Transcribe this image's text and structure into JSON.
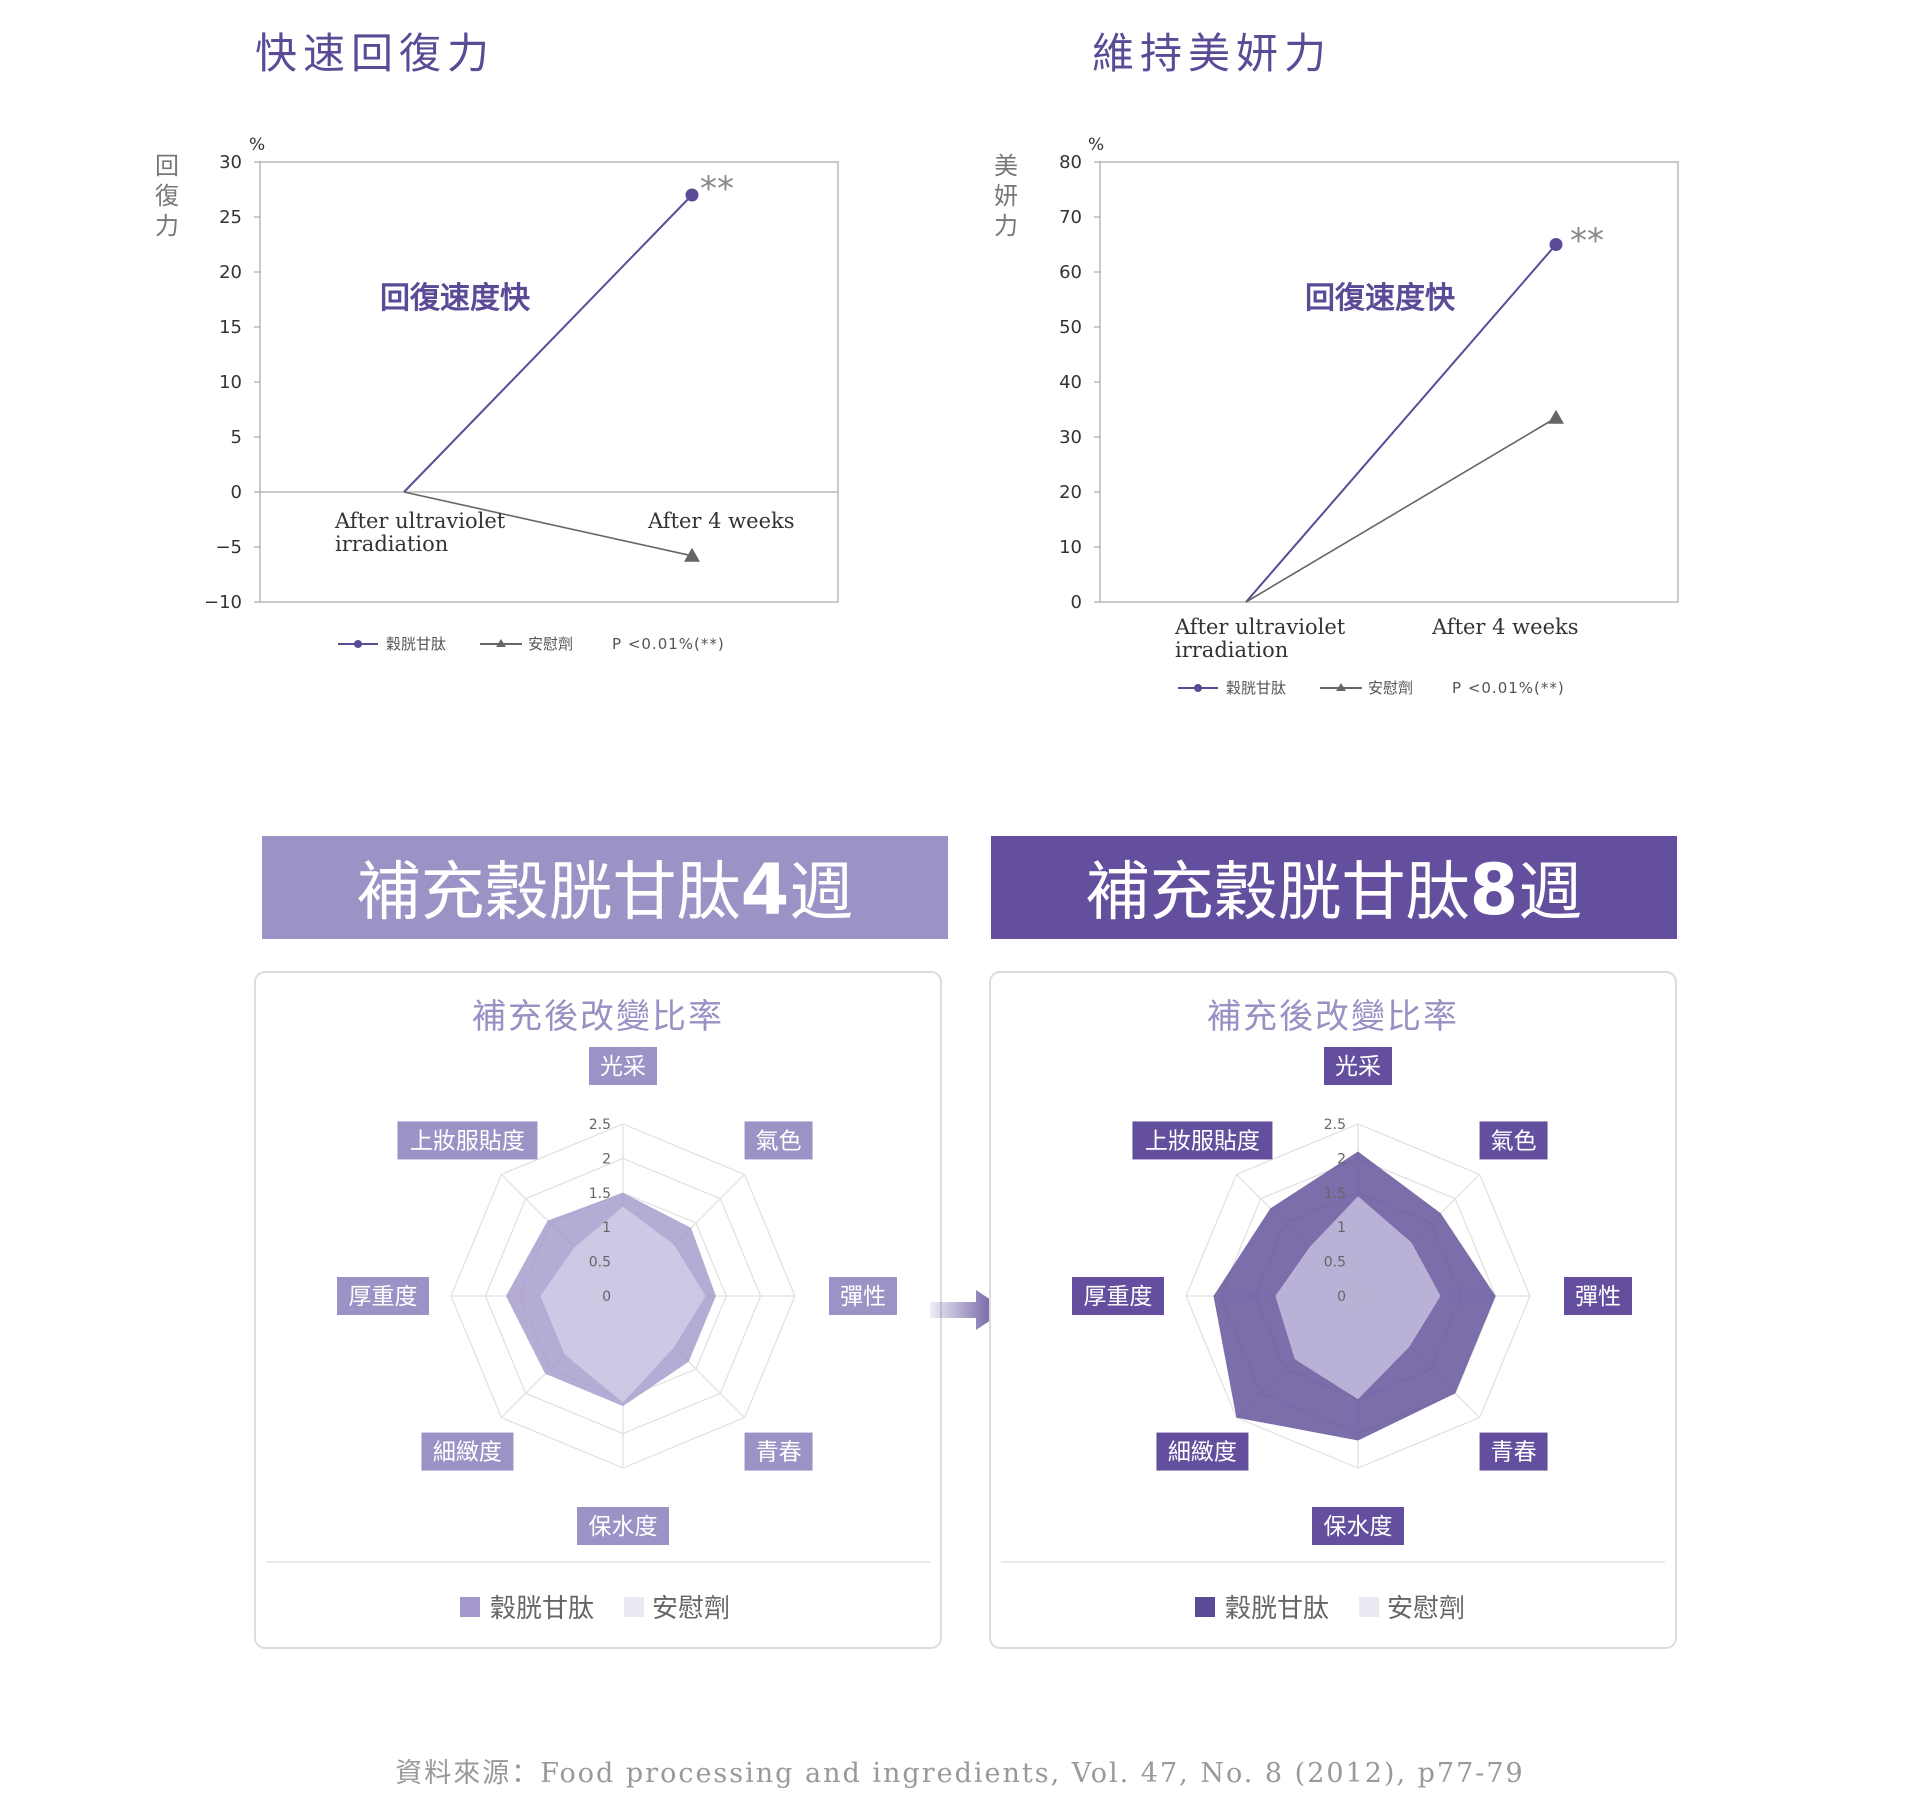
{
  "colors": {
    "primary": "#5b4a96",
    "light": "#9b8fc4",
    "dark_banner": "#644f9e",
    "light_banner": "#9d92c5",
    "axis_text": "#333333",
    "placebo_fill": "#e8e6f1",
    "gray": "#777777"
  },
  "left_chart": {
    "title": "快速回復力",
    "y_axis_label": [
      "回",
      "復",
      "力"
    ],
    "unit": "%",
    "annotation": "回復速度快",
    "significance": "**",
    "legend": {
      "series1": "穀胱甘肽",
      "series2": "安慰劑",
      "p_value": "P <0.01%(**)"
    }
  },
  "right_chart": {
    "title": "維持美妍力",
    "y_axis_label": [
      "美",
      "妍",
      "力"
    ],
    "unit": "%",
    "annotation": "回復速度快",
    "significance": "**",
    "legend": {
      "series1": "穀胱甘肽",
      "series2": "安慰劑",
      "p_value": "P <0.01%(**)"
    }
  },
  "banner_4w": {
    "text_pre": "補充穀胱甘肽",
    "number": "4",
    "text_post": "週"
  },
  "banner_8w": {
    "text_pre": "補充穀胱甘肽",
    "number": "8",
    "text_post": "週"
  },
  "radar_4w": {
    "title": "補充後改變比率",
    "legend": {
      "series1": "穀胱甘肽",
      "series2": "安慰劑"
    }
  },
  "radar_8w": {
    "title": "補充後改變比率",
    "legend": {
      "series1": "穀胱甘肽",
      "series2": "安慰劑"
    }
  },
  "source": "資料來源：Food processing and ingredients, Vol. 47, No. 8 (2012), p77-79",
  "chart_data": [
    {
      "type": "line",
      "title": "快速回復力",
      "ylabel": "回復力",
      "categories": [
        "After ultraviolet irradiation",
        "After 4 weeks"
      ],
      "ylim": [
        -10,
        30
      ],
      "yticks": [
        30,
        25,
        20,
        15,
        10,
        5,
        0,
        -5,
        -10
      ],
      "series": [
        {
          "name": "穀胱甘肽",
          "values": [
            0,
            27
          ],
          "marker": "circle"
        },
        {
          "name": "安慰劑",
          "values": [
            0,
            -5.8
          ],
          "marker": "triangle"
        }
      ]
    },
    {
      "type": "line",
      "title": "維持美妍力",
      "ylabel": "美妍力",
      "categories": [
        "After ultraviolet irradiation",
        "After 4 weeks"
      ],
      "ylim": [
        0,
        80
      ],
      "yticks": [
        80,
        70,
        60,
        50,
        40,
        30,
        20,
        10,
        0
      ],
      "series": [
        {
          "name": "穀胱甘肽",
          "values": [
            0,
            65
          ],
          "marker": "circle"
        },
        {
          "name": "安慰劑",
          "values": [
            0,
            33.5
          ],
          "marker": "triangle"
        }
      ]
    },
    {
      "type": "radar",
      "title": "補充後改變比率",
      "axes": [
        "光采",
        "氣色",
        "彈性",
        "青春",
        "保水度",
        "細緻度",
        "厚重度",
        "上妝服貼度"
      ],
      "rticks": [
        "0",
        "0.5",
        "1",
        "1.5",
        "2",
        "2.5"
      ],
      "rlim": [
        0,
        2.5
      ],
      "series": [
        {
          "name": "穀胱甘肽",
          "values": [
            1.5,
            1.4,
            1.35,
            1.35,
            1.6,
            1.6,
            1.7,
            1.55
          ]
        },
        {
          "name": "安慰劑",
          "values": [
            1.3,
            1.05,
            1.2,
            1.05,
            1.55,
            1.2,
            1.2,
            1.0
          ]
        }
      ]
    },
    {
      "type": "radar",
      "title": "補充後改變比率",
      "axes": [
        "光采",
        "氣色",
        "彈性",
        "青春",
        "保水度",
        "細緻度",
        "厚重度",
        "上妝服貼度"
      ],
      "rticks": [
        "0",
        "0.5",
        "1",
        "1.5",
        "2",
        "2.5"
      ],
      "rlim": [
        0,
        2.5
      ],
      "series": [
        {
          "name": "穀胱甘肽",
          "values": [
            2.1,
            1.7,
            2.0,
            2.0,
            2.1,
            2.5,
            2.1,
            1.8
          ]
        },
        {
          "name": "安慰劑",
          "values": [
            1.45,
            1.1,
            1.2,
            1.05,
            1.5,
            1.3,
            1.2,
            1.0
          ]
        }
      ]
    }
  ]
}
